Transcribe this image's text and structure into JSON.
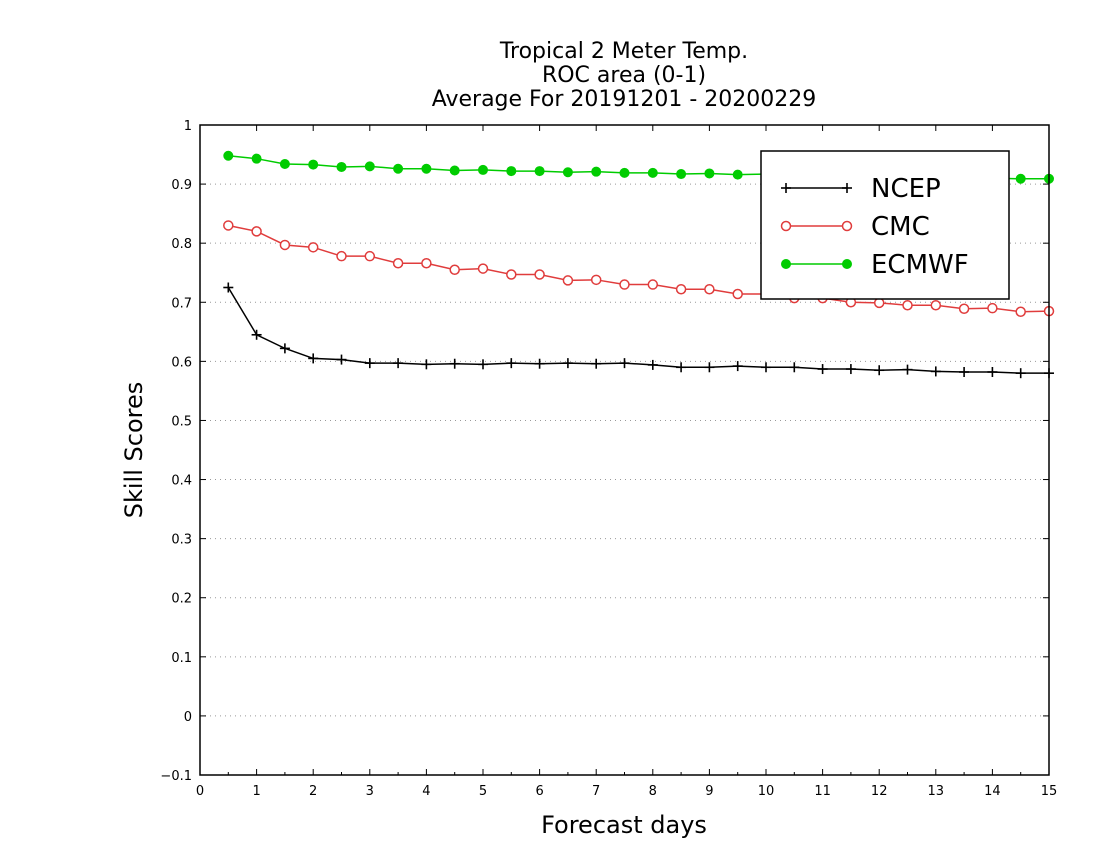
{
  "chart_data": {
    "type": "line",
    "title": [
      "Tropical 2 Meter Temp.",
      "ROC area (0-1)",
      "Average For 20191201 - 20200229"
    ],
    "xlabel": "Forecast days",
    "ylabel": "Skill Scores",
    "xlim": [
      0,
      15
    ],
    "ylim": [
      -0.1,
      1
    ],
    "xticks": [
      "0",
      "1",
      "2",
      "3",
      "4",
      "5",
      "6",
      "7",
      "8",
      "9",
      "10",
      "11",
      "12",
      "13",
      "14",
      "15"
    ],
    "yticks": [
      "−0.1",
      "0",
      "0.1",
      "0.2",
      "0.3",
      "0.4",
      "0.5",
      "0.6",
      "0.7",
      "0.8",
      "0.9",
      "1"
    ],
    "grid": "horizontal-dotted",
    "legend_position": "top-right",
    "x": [
      0.5,
      1,
      1.5,
      2,
      2.5,
      3,
      3.5,
      4,
      4.5,
      5,
      5.5,
      6,
      6.5,
      7,
      7.5,
      8,
      8.5,
      9,
      9.5,
      10,
      10.5,
      11,
      11.5,
      12,
      12.5,
      13,
      13.5,
      14,
      14.5,
      15
    ],
    "series": [
      {
        "name": "NCEP",
        "color": "#000000",
        "marker": "plus",
        "values": [
          0.725,
          0.645,
          0.622,
          0.605,
          0.603,
          0.597,
          0.597,
          0.595,
          0.596,
          0.595,
          0.597,
          0.596,
          0.597,
          0.596,
          0.597,
          0.594,
          0.59,
          0.59,
          0.592,
          0.59,
          0.59,
          0.587,
          0.587,
          0.585,
          0.586,
          0.583,
          0.582,
          0.582,
          0.58,
          0.58
        ]
      },
      {
        "name": "CMC",
        "color": "#e03c3c",
        "marker": "open-circle",
        "values": [
          0.83,
          0.82,
          0.797,
          0.793,
          0.778,
          0.778,
          0.766,
          0.766,
          0.755,
          0.757,
          0.747,
          0.747,
          0.737,
          0.738,
          0.73,
          0.73,
          0.722,
          0.722,
          0.714,
          0.714,
          0.707,
          0.707,
          0.7,
          0.699,
          0.695,
          0.695,
          0.689,
          0.69,
          0.684,
          0.685
        ]
      },
      {
        "name": "ECMWF",
        "color": "#00cc00",
        "marker": "filled-circle",
        "values": [
          0.948,
          0.943,
          0.934,
          0.933,
          0.929,
          0.93,
          0.926,
          0.926,
          0.923,
          0.924,
          0.922,
          0.922,
          0.92,
          0.921,
          0.919,
          0.919,
          0.917,
          0.918,
          0.916,
          0.917,
          0.914,
          0.915,
          0.913,
          0.913,
          0.912,
          0.912,
          0.91,
          0.91,
          0.909,
          0.909
        ]
      }
    ]
  }
}
